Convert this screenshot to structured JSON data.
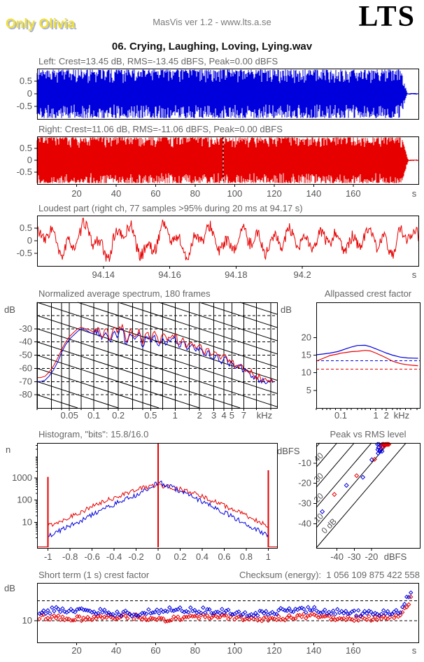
{
  "header": {
    "watermark": "Only Olivia",
    "app_title": "MasVis ver 1.2 - www.lts.a.se",
    "logo": "LTS",
    "filename": "06. Crying, Laughing, Loving, Lying.wav"
  },
  "colors": {
    "left": "#0000dd",
    "right": "#e60000",
    "axis": "#000000",
    "tick_text": "#555555",
    "title_text": "#666666"
  },
  "chart_data": [
    {
      "id": "wave-left",
      "type": "area",
      "channel": "Left",
      "title": "Left: Crest=13.45 dB, RMS=-13.45 dBFS, Peak=0.00 dBFS",
      "stats": {
        "crest_db": 13.45,
        "rms_dbfs": -13.45,
        "peak_dbfs": 0.0
      },
      "xlim": [
        0,
        193
      ],
      "ylim": [
        -1,
        1
      ],
      "yticks": [
        0.5,
        0,
        -0.5
      ],
      "ytick_labels": [
        "0.5",
        "0",
        "-0.5"
      ],
      "envelope": {
        "fade_start": 184,
        "fade_end": 187.5,
        "tail": 0.025,
        "notch_depth": 0.55,
        "notch_power": 1.9
      },
      "seed": 11
    },
    {
      "id": "wave-right",
      "type": "area",
      "channel": "Right",
      "title": "Right: Crest=11.06 dB, RMS=-11.06 dBFS, Peak=0.00 dBFS",
      "stats": {
        "crest_db": 11.06,
        "rms_dbfs": -11.06,
        "peak_dbfs": 0.0
      },
      "xlim": [
        0,
        193
      ],
      "ylim": [
        -1,
        1
      ],
      "yticks": [
        0.5,
        0,
        -0.5
      ],
      "ytick_labels": [
        "0.5",
        "0",
        "-0.5"
      ],
      "xticks": [
        20,
        40,
        60,
        80,
        100,
        120,
        140,
        160
      ],
      "xtick_labels": [
        "20",
        "40",
        "60",
        "80",
        "100",
        "120",
        "140",
        "160"
      ],
      "xunit": "s",
      "marker_time": 94.17,
      "envelope": {
        "fade_start": 184.5,
        "fade_end": 188,
        "tail": 0.025,
        "notch_depth": 0.44,
        "notch_power": 2.6
      },
      "seed": 22
    },
    {
      "id": "loudest",
      "type": "line",
      "title": "Loudest part (right ch, 77 samples >95% during 20 ms at 94.17 s)",
      "xlim": [
        94.12,
        94.235
      ],
      "ylim": [
        -1,
        1
      ],
      "yticks": [
        0.5,
        0,
        -0.5
      ],
      "ytick_labels": [
        "0.5",
        "0",
        "-0.5"
      ],
      "xticks": [
        94.14,
        94.16,
        94.18,
        94.2
      ],
      "xtick_labels": [
        "94.14",
        "94.16",
        "94.18",
        "94.2"
      ],
      "xunit": "s",
      "seed": 33
    },
    {
      "id": "spectrum",
      "type": "line",
      "title": "Normalized average spectrum, 180 frames",
      "ylabel": "dB",
      "xunit": "kHz",
      "xlog": true,
      "xlim": [
        0.02,
        18
      ],
      "ylim": [
        -90,
        -10
      ],
      "yticks": [
        -30,
        -40,
        -50,
        -60,
        -70,
        -80
      ],
      "ytick_labels": [
        "-30",
        "-40",
        "-50",
        "-60",
        "-70",
        "-80"
      ],
      "xticks": [
        0.05,
        0.1,
        0.2,
        0.5,
        1,
        2,
        3,
        4,
        5,
        7
      ],
      "xtick_labels": [
        "0.05",
        "0.1",
        "0.2",
        "0.5",
        "1",
        "2",
        "3",
        "4",
        "5",
        "7"
      ],
      "grid_series": [
        1,
        1.5,
        2,
        3,
        4,
        5,
        7
      ],
      "dashed_hlines": [
        -20,
        -30,
        -40,
        -50,
        -60,
        -70,
        -80
      ],
      "diagonal_slope_db_per_decade": 20,
      "freqs": [
        0.02,
        0.022,
        0.025,
        0.028,
        0.032,
        0.036,
        0.04,
        0.045,
        0.05,
        0.056,
        0.063,
        0.07,
        0.08,
        0.09,
        0.1,
        0.112,
        0.125,
        0.14,
        0.16,
        0.18,
        0.2,
        0.224,
        0.25,
        0.28,
        0.32,
        0.36,
        0.4,
        0.45,
        0.5,
        0.56,
        0.63,
        0.7,
        0.8,
        0.9,
        1.0,
        1.12,
        1.25,
        1.4,
        1.6,
        1.8,
        2.0,
        2.24,
        2.5,
        2.8,
        3.2,
        3.6,
        4.0,
        4.5,
        5.0,
        5.6,
        6.3,
        7.0,
        8.0,
        9.0,
        10.0,
        11.2,
        12.5,
        14.0,
        16.0
      ],
      "series": [
        {
          "name": "left",
          "values": [
            -70,
            -70,
            -69,
            -66,
            -61,
            -55,
            -48,
            -42,
            -38,
            -35,
            -32,
            -30,
            -31,
            -33,
            -34,
            -31,
            -38,
            -33,
            -40,
            -32,
            -35,
            -30,
            -42,
            -34,
            -38,
            -33,
            -44,
            -36,
            -40,
            -35,
            -43,
            -37,
            -41,
            -38,
            -36,
            -44,
            -40,
            -46,
            -42,
            -47,
            -44,
            -50,
            -47,
            -52,
            -50,
            -55,
            -52,
            -57,
            -56,
            -60,
            -58,
            -62,
            -63,
            -66,
            -67,
            -69,
            -70,
            -70,
            -71
          ]
        },
        {
          "name": "right",
          "values": [
            -67,
            -67,
            -66,
            -63,
            -58,
            -52,
            -46,
            -40,
            -36,
            -33,
            -30,
            -29,
            -30,
            -31,
            -33,
            -29,
            -36,
            -30,
            -38,
            -29,
            -31,
            -27,
            -40,
            -30,
            -36,
            -30,
            -42,
            -33,
            -38,
            -32,
            -41,
            -34,
            -39,
            -36,
            -34,
            -42,
            -37,
            -44,
            -40,
            -45,
            -42,
            -48,
            -45,
            -50,
            -48,
            -53,
            -50,
            -55,
            -54,
            -58,
            -57,
            -61,
            -62,
            -64,
            -66,
            -67,
            -68,
            -69,
            -70
          ]
        }
      ],
      "seed": 44
    },
    {
      "id": "allpassed",
      "type": "line",
      "title": "Allpassed crest factor",
      "ylabel": "dB",
      "xunit": "kHz",
      "xlog": true,
      "xlim": [
        0.02,
        18
      ],
      "ylim": [
        0,
        30
      ],
      "yticks": [
        5,
        10,
        15,
        20
      ],
      "ytick_labels": [
        "5",
        "10",
        "15",
        "20"
      ],
      "xticks": [
        0.1,
        1,
        2
      ],
      "xtick_labels": [
        "0.1",
        "1",
        "2"
      ],
      "grid_series": [
        1,
        1.5,
        2,
        3,
        4,
        5,
        7
      ],
      "series": [
        {
          "name": "left",
          "points": [
            [
              0.02,
              15.1
            ],
            [
              0.03,
              15.3
            ],
            [
              0.05,
              15.6
            ],
            [
              0.08,
              16.0
            ],
            [
              0.1,
              16.3
            ],
            [
              0.15,
              16.9
            ],
            [
              0.2,
              17.3
            ],
            [
              0.3,
              17.75
            ],
            [
              0.5,
              17.8
            ],
            [
              0.7,
              17.4
            ],
            [
              1,
              16.8
            ],
            [
              1.5,
              16.1
            ],
            [
              2,
              15.6
            ],
            [
              3,
              15.0
            ],
            [
              5,
              14.45
            ],
            [
              8,
              14.2
            ],
            [
              12,
              14.15
            ],
            [
              16,
              14.1
            ]
          ]
        },
        {
          "name": "right",
          "points": [
            [
              0.02,
              13.3
            ],
            [
              0.03,
              14.0
            ],
            [
              0.05,
              14.9
            ],
            [
              0.08,
              15.3
            ],
            [
              0.1,
              15.55
            ],
            [
              0.15,
              15.8
            ],
            [
              0.2,
              16.0
            ],
            [
              0.3,
              16.1
            ],
            [
              0.5,
              16.35
            ],
            [
              0.7,
              16.2
            ],
            [
              1,
              15.6
            ],
            [
              1.5,
              14.8
            ],
            [
              2,
              14.2
            ],
            [
              3,
              13.3
            ],
            [
              5,
              12.6
            ],
            [
              8,
              12.25
            ],
            [
              12,
              12.1
            ],
            [
              16,
              12.0
            ]
          ]
        }
      ],
      "dashed_refs": [
        {
          "name": "left",
          "value": 13.45
        },
        {
          "name": "right",
          "value": 11.06
        }
      ]
    },
    {
      "id": "histogram",
      "type": "line",
      "title": "Histogram, \"bits\": 15.8/16.0",
      "bits": "15.8/16.0",
      "ylabel": "n",
      "ylog": true,
      "xlim": [
        -1.1,
        1.08
      ],
      "ylim": [
        0.7,
        38000
      ],
      "yticks": [
        10,
        100,
        1000
      ],
      "ytick_labels": [
        "10",
        "100",
        "1000"
      ],
      "xticks": [
        -1,
        -0.8,
        -0.6,
        -0.4,
        -0.2,
        0,
        0.2,
        0.4,
        0.6,
        0.8,
        1
      ],
      "xtick_labels": [
        "-1",
        "-0.8",
        "-0.6",
        "-0.4",
        "-0.2",
        "0",
        "0.2",
        "0.4",
        "0.6",
        "0.8",
        "1"
      ],
      "anchors_x_start": -1,
      "anchor_x_step": 0.1,
      "series": [
        {
          "name": "left",
          "counts": [
            2.5,
            4,
            7,
            12,
            22,
            38,
            65,
            105,
            170,
            300,
            650,
            430,
            260,
            155,
            88,
            52,
            28,
            15,
            8,
            4.5,
            2.5
          ]
        },
        {
          "name": "right",
          "counts": [
            7,
            11,
            18,
            30,
            50,
            82,
            130,
            200,
            295,
            400,
            480,
            415,
            305,
            215,
            145,
            92,
            56,
            34,
            20,
            12,
            7
          ],
          "spikes": [
            [
              -1,
              1100
            ],
            [
              0,
              35000
            ],
            [
              1,
              2200
            ]
          ]
        }
      ],
      "seed": 55
    },
    {
      "id": "pvr",
      "type": "scatter",
      "title": "Peak vs RMS level",
      "ylabel": "dBFS",
      "xunit": "dBFS",
      "xlim": [
        -52,
        8
      ],
      "ylim": [
        -52,
        0
      ],
      "xticks": [
        -40,
        -30,
        -20
      ],
      "xtick_labels": [
        "-40",
        "-30",
        "-20"
      ],
      "yticks": [
        -10,
        -20,
        -30,
        -40
      ],
      "ytick_labels": [
        "-10",
        "-20",
        "-30",
        "-40"
      ],
      "diagonals": [
        0,
        10,
        20,
        30,
        40,
        50
      ],
      "diagonal_labels": [
        "10",
        "20",
        "30",
        "40"
      ],
      "diagonal_zero_label": "0 dB",
      "series": [
        {
          "name": "left",
          "points": [
            [
              -48.5,
              -34
            ],
            [
              -34.5,
              -21
            ],
            [
              -25,
              -17
            ],
            [
              -19.8,
              -8.3
            ],
            [
              -16.5,
              -0.6
            ],
            [
              -15.6,
              -0.5
            ],
            [
              -14.8,
              -1.3
            ],
            [
              -15.9,
              -2.3
            ],
            [
              -16.3,
              -3.3
            ],
            [
              -15.2,
              -4.3
            ],
            [
              -16.1,
              -5.1
            ],
            [
              -14.2,
              -0.9
            ],
            [
              -13.6,
              -1.7
            ],
            [
              -14.6,
              -2.9
            ],
            [
              -13.1,
              -0.6
            ],
            [
              -12.3,
              -1.1
            ],
            [
              -13.9,
              -4.1
            ],
            [
              -15.0,
              -3.6
            ]
          ]
        },
        {
          "name": "right",
          "points": [
            [
              -41.5,
              -25.5
            ],
            [
              -28.6,
              -16.2
            ],
            [
              -18.2,
              -8.1
            ],
            [
              -13.6,
              -0.4
            ],
            [
              -12.9,
              -0.3
            ],
            [
              -12.1,
              -0.4
            ],
            [
              -11.3,
              -0.3
            ],
            [
              -10.5,
              -0.4
            ],
            [
              -9.9,
              -0.3
            ],
            [
              -12.5,
              -1.5
            ],
            [
              -14.1,
              -2.1
            ],
            [
              -11.7,
              -0.8
            ],
            [
              -10.9,
              -0.3
            ],
            [
              -12.0,
              -0.9
            ]
          ]
        }
      ]
    },
    {
      "id": "shortterm",
      "type": "scatter",
      "title": "Short term (1 s) crest factor",
      "checksum": "Checksum (energy):  1 056 109 875 422 558",
      "ylabel": "dB",
      "xunit": "s",
      "xlim": [
        0,
        193
      ],
      "ylim": [
        4.5,
        19.5
      ],
      "yticks": [
        10
      ],
      "ytick_labels": [
        "10"
      ],
      "dashed_hlines": [
        10,
        15
      ],
      "xticks": [
        20,
        40,
        60,
        80,
        100,
        120,
        140,
        160
      ],
      "xtick_labels": [
        "20",
        "40",
        "60",
        "80",
        "100",
        "120",
        "140",
        "160"
      ],
      "gen": {
        "count": 178,
        "t_start": 1.2,
        "t_step": 1.062,
        "left_mean": 12.3,
        "left_spread": 1.5,
        "right_mean": 10.75,
        "right_spread": 1.3,
        "rise_start": 183.5,
        "rise_rate": 0.82
      },
      "seed": 66
    }
  ]
}
